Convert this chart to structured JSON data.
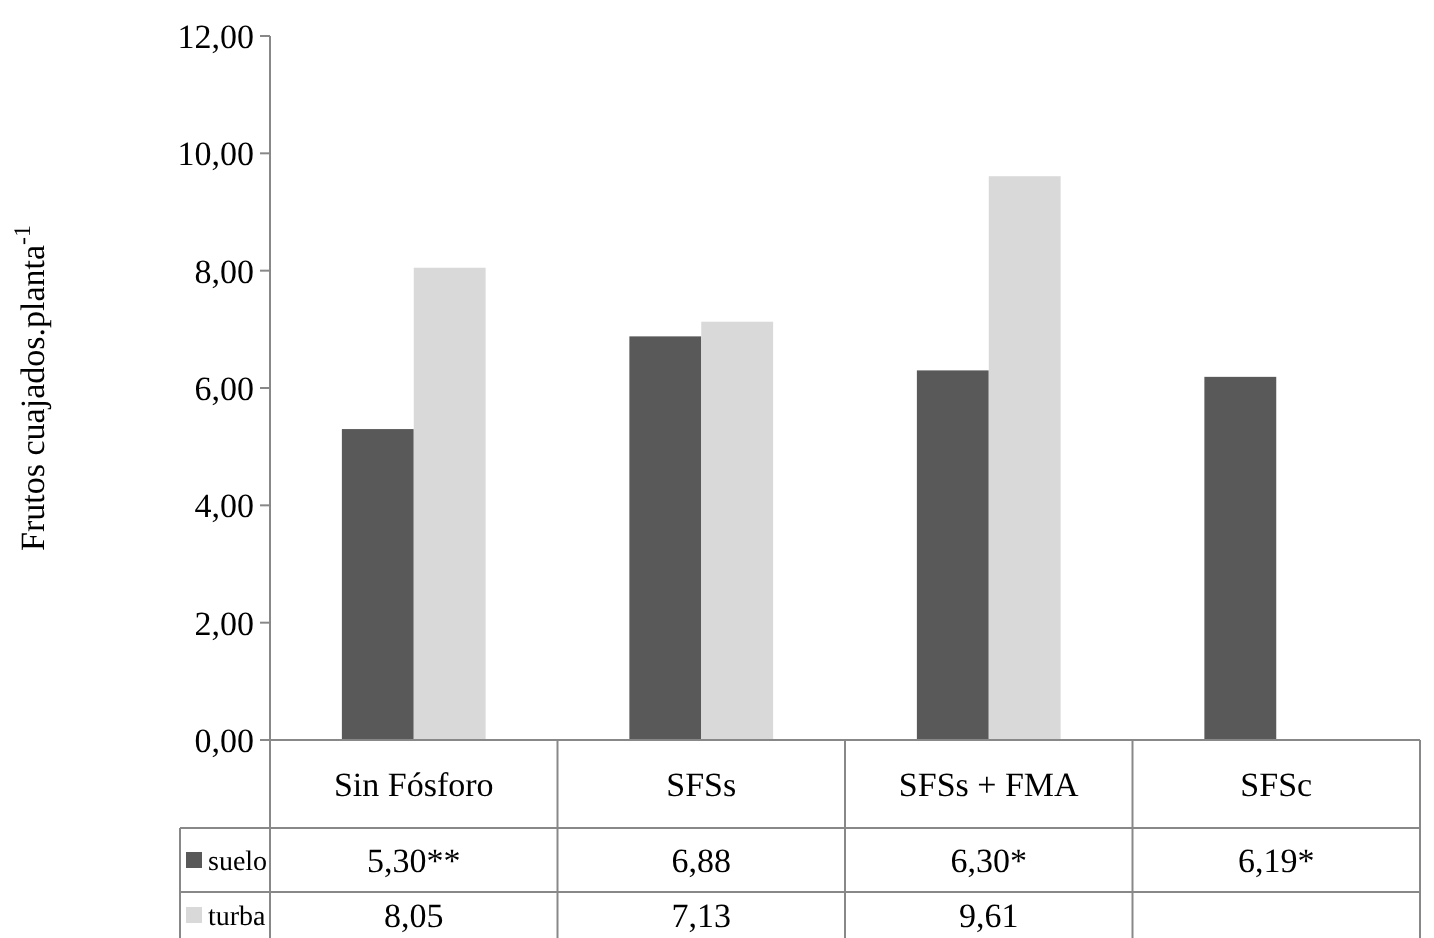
{
  "chart_data": {
    "type": "bar",
    "ylabel": "Frutos cuajados.planta$^{-1}$",
    "categories": [
      "Sin Fósforo",
      "SFSs",
      "SFSs + FMA",
      "SFSc"
    ],
    "series": [
      {
        "name": "suelo",
        "color": "#595959",
        "values": [
          5.3,
          6.88,
          6.3,
          6.19
        ],
        "value_labels": [
          "5,30**",
          "6,88",
          "6,30*",
          "6,19*"
        ]
      },
      {
        "name": "turba",
        "color": "#d9d9d9",
        "values": [
          8.05,
          7.13,
          9.61,
          null
        ],
        "value_labels": [
          "8,05",
          "7,13",
          "9,61",
          null
        ]
      }
    ],
    "ylim": [
      0,
      12
    ],
    "yticks": [
      {
        "value": 0,
        "label": "0,00"
      },
      {
        "value": 2,
        "label": "2,00"
      },
      {
        "value": 4,
        "label": "4,00"
      },
      {
        "value": 6,
        "label": "6,00"
      },
      {
        "value": 8,
        "label": "8,00"
      },
      {
        "value": 10,
        "label": "10,00"
      },
      {
        "value": 12,
        "label": "12,00"
      }
    ],
    "grid": false,
    "legend": "bottom"
  }
}
